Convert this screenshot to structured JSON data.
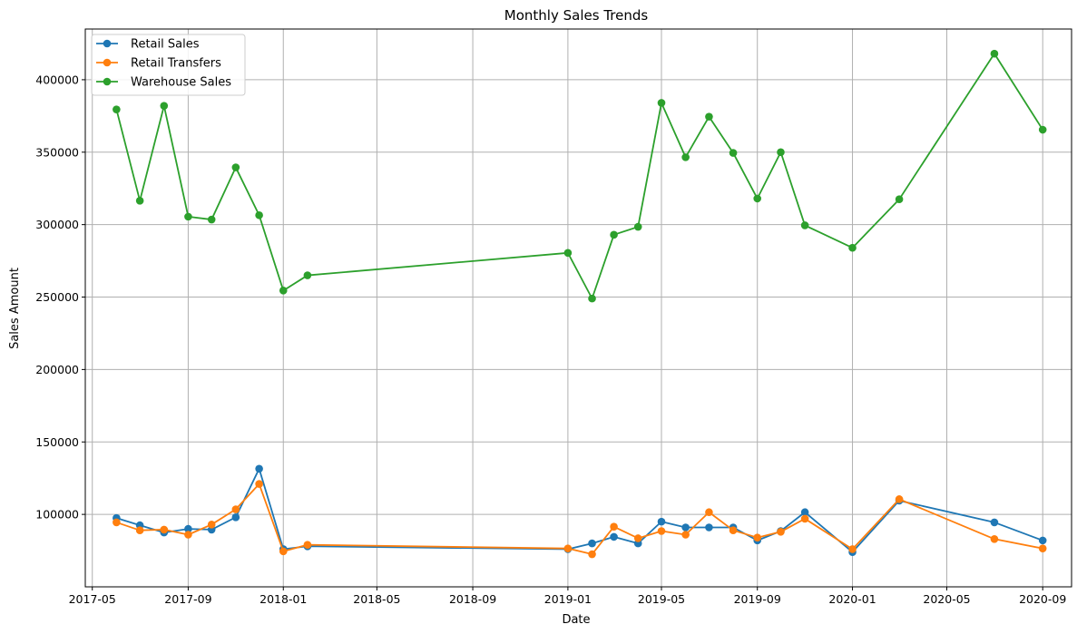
{
  "chart_data": {
    "type": "line",
    "title": "Monthly Sales Trends",
    "xlabel": "Date",
    "ylabel": "Sales Amount",
    "x_axis_type": "date",
    "xlim": [
      "2017-04-22",
      "2020-10-08"
    ],
    "ylim": [
      50000,
      435000
    ],
    "grid": true,
    "legend_position": "upper-left",
    "x_ticks": [
      "2017-05-01",
      "2017-09-01",
      "2018-01-01",
      "2018-05-01",
      "2018-09-01",
      "2019-01-01",
      "2019-05-01",
      "2019-09-01",
      "2020-01-01",
      "2020-05-01",
      "2020-09-01"
    ],
    "x_tick_labels": [
      "2017-05",
      "2017-09",
      "2018-01",
      "2018-05",
      "2018-09",
      "2019-01",
      "2019-05",
      "2019-09",
      "2020-01",
      "2020-05",
      "2020-09"
    ],
    "y_ticks": [
      100000,
      150000,
      200000,
      250000,
      300000,
      350000,
      400000
    ],
    "y_tick_labels": [
      "100000",
      "150000",
      "200000",
      "250000",
      "300000",
      "350000",
      "400000"
    ],
    "x": [
      "2017-06-01",
      "2017-07-01",
      "2017-08-01",
      "2017-09-01",
      "2017-10-01",
      "2017-11-01",
      "2017-12-01",
      "2018-01-01",
      "2018-02-01",
      "2019-01-01",
      "2019-02-01",
      "2019-03-01",
      "2019-04-01",
      "2019-05-01",
      "2019-06-01",
      "2019-07-01",
      "2019-08-01",
      "2019-09-01",
      "2019-10-01",
      "2019-11-01",
      "2020-01-01",
      "2020-03-01",
      "2020-07-01",
      "2020-09-01"
    ],
    "series": [
      {
        "name": "Retail Sales",
        "color": "#1f77b4",
        "values": [
          97500,
          92500,
          87500,
          90000,
          89500,
          98000,
          131500,
          76000,
          78000,
          76000,
          80000,
          84500,
          80000,
          95000,
          91000,
          91000,
          91000,
          82000,
          88500,
          101500,
          74000,
          109500,
          94500,
          82000
        ]
      },
      {
        "name": "Retail Transfers",
        "color": "#ff7f0e",
        "values": [
          94500,
          89000,
          89500,
          86000,
          93000,
          103500,
          121000,
          74500,
          79000,
          76500,
          72500,
          91500,
          83500,
          88500,
          86000,
          101500,
          89000,
          84000,
          88000,
          97000,
          76000,
          110500,
          83000,
          76500
        ]
      },
      {
        "name": "Warehouse Sales",
        "color": "#2ca02c",
        "values": [
          379500,
          316500,
          382000,
          305500,
          303500,
          339500,
          306500,
          254500,
          265000,
          280500,
          249000,
          293000,
          298500,
          384000,
          346500,
          374500,
          349500,
          318000,
          350000,
          299500,
          284000,
          317500,
          418000,
          365500
        ]
      }
    ]
  }
}
